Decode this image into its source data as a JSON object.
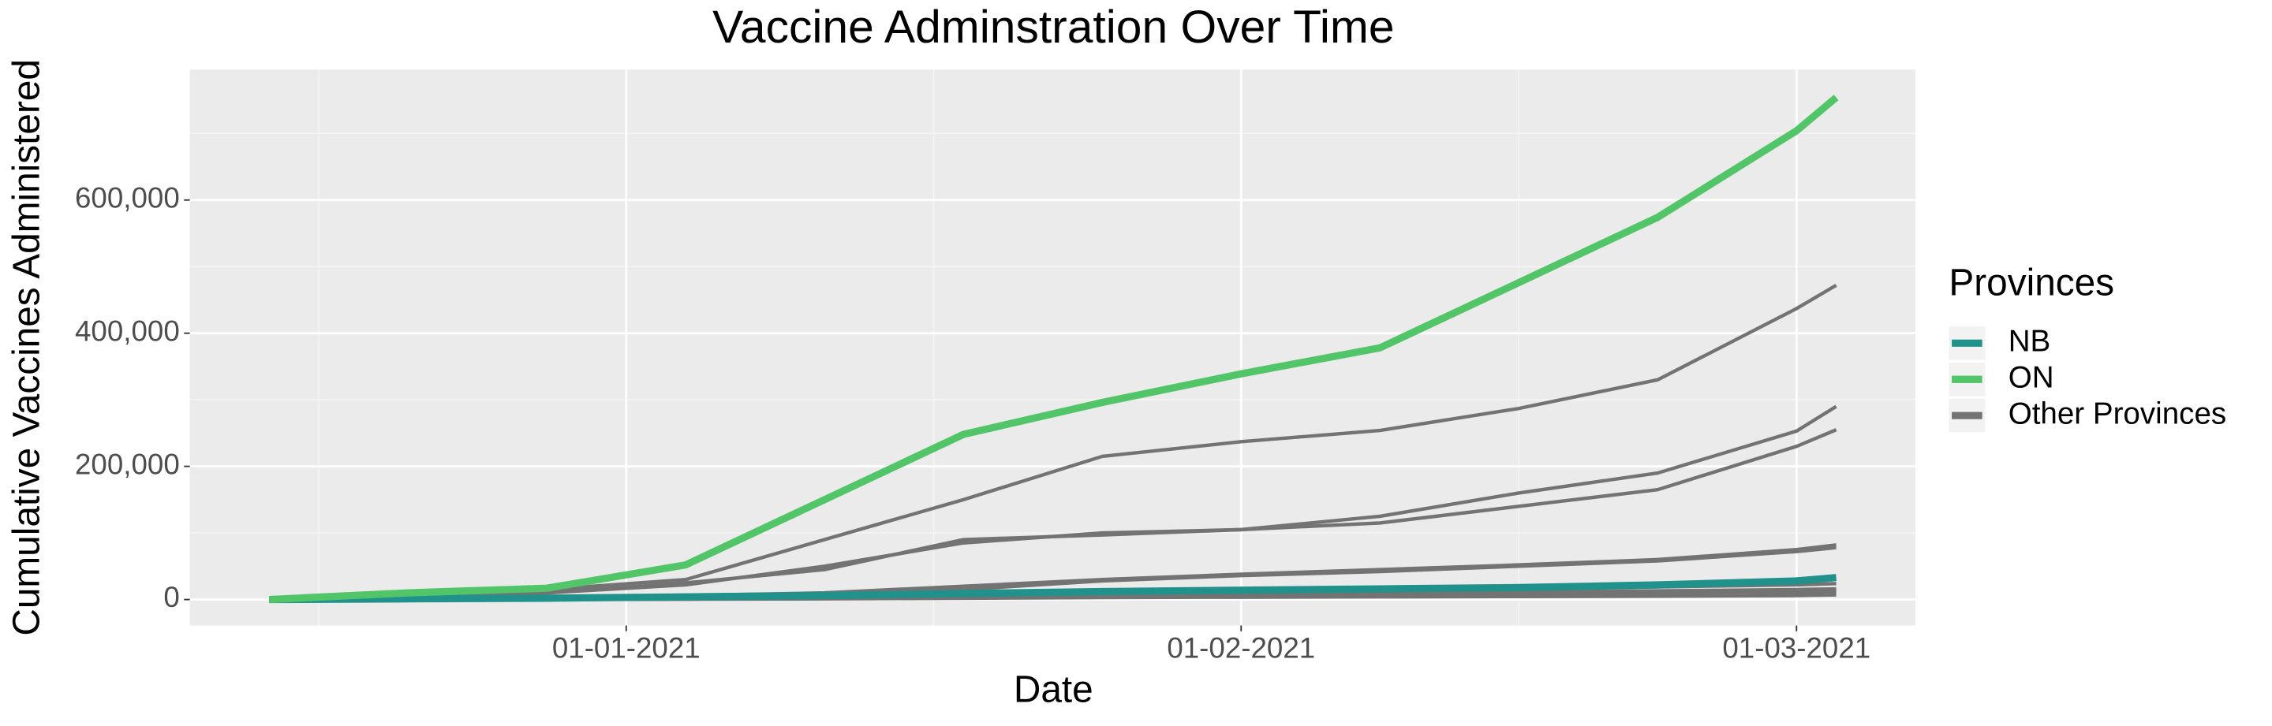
{
  "chart_data": {
    "type": "line",
    "title": "Vaccine Adminstration Over Time",
    "x_label": "Date",
    "y_label": "Cumulative Vaccines Administered",
    "legend_title": "Provinces",
    "legend_position": "right",
    "grid": true,
    "x": [
      "2020-12-14",
      "2020-12-21",
      "2020-12-28",
      "2021-01-04",
      "2021-01-11",
      "2021-01-18",
      "2021-01-25",
      "2021-02-01",
      "2021-02-08",
      "2021-02-15",
      "2021-02-22",
      "2021-03-01",
      "2021-03-03"
    ],
    "xlim": [
      "2020-12-10",
      "2021-03-07"
    ],
    "xticks": [
      {
        "value": "2021-01-01",
        "label": "01-01-2021"
      },
      {
        "value": "2021-02-01",
        "label": "01-02-2021"
      },
      {
        "value": "2021-03-01",
        "label": "01-03-2021"
      }
    ],
    "ylim": [
      -39000,
      796000
    ],
    "yticks": [
      0,
      {
        "value": 200000,
        "label": "200,000"
      },
      {
        "value": 400000,
        "label": "400,000"
      },
      {
        "value": 600000,
        "label": "600,000"
      }
    ],
    "other_series": {
      "name": "Other Provinces",
      "color": "#737373",
      "lines": [
        [
          0,
          3000,
          15000,
          30000,
          90000,
          150000,
          215000,
          237000,
          254000,
          287000,
          330000,
          437000,
          472000
        ],
        [
          0,
          2000,
          10000,
          25000,
          45000,
          90000,
          97000,
          105000,
          125000,
          160000,
          190000,
          253000,
          290000
        ],
        [
          0,
          2000,
          10000,
          22000,
          50000,
          85000,
          100000,
          105000,
          115000,
          140000,
          165000,
          230000,
          255000
        ],
        [
          0,
          1000,
          3000,
          6000,
          10000,
          20000,
          30000,
          38000,
          45000,
          52000,
          60000,
          75000,
          82000
        ],
        [
          0,
          0,
          2000,
          5000,
          8000,
          15000,
          28000,
          36000,
          42000,
          50000,
          58000,
          72000,
          78000
        ],
        [
          0,
          0,
          1000,
          3000,
          5000,
          8000,
          10000,
          13000,
          15000,
          17000,
          19000,
          22000,
          24000
        ],
        [
          0,
          0,
          1000,
          2000,
          4000,
          6000,
          8000,
          10000,
          11000,
          12000,
          13000,
          15000,
          16000
        ],
        [
          0,
          0,
          0,
          1000,
          2000,
          4000,
          6000,
          7000,
          8000,
          9000,
          10000,
          11000,
          12000
        ],
        [
          0,
          0,
          0,
          500,
          1000,
          2000,
          3000,
          3500,
          4000,
          4500,
          5000,
          6000,
          7000
        ]
      ]
    },
    "series": [
      {
        "name": "NB",
        "color": "#21918c",
        "values": [
          0,
          1000,
          2000,
          4000,
          6000,
          9000,
          12000,
          14000,
          16000,
          18000,
          22000,
          28000,
          33000
        ]
      },
      {
        "name": "ON",
        "color": "#52c569",
        "values": [
          0,
          10000,
          17000,
          52000,
          150000,
          248000,
          296000,
          339000,
          378000,
          476000,
          574000,
          704000,
          754000
        ]
      }
    ]
  }
}
